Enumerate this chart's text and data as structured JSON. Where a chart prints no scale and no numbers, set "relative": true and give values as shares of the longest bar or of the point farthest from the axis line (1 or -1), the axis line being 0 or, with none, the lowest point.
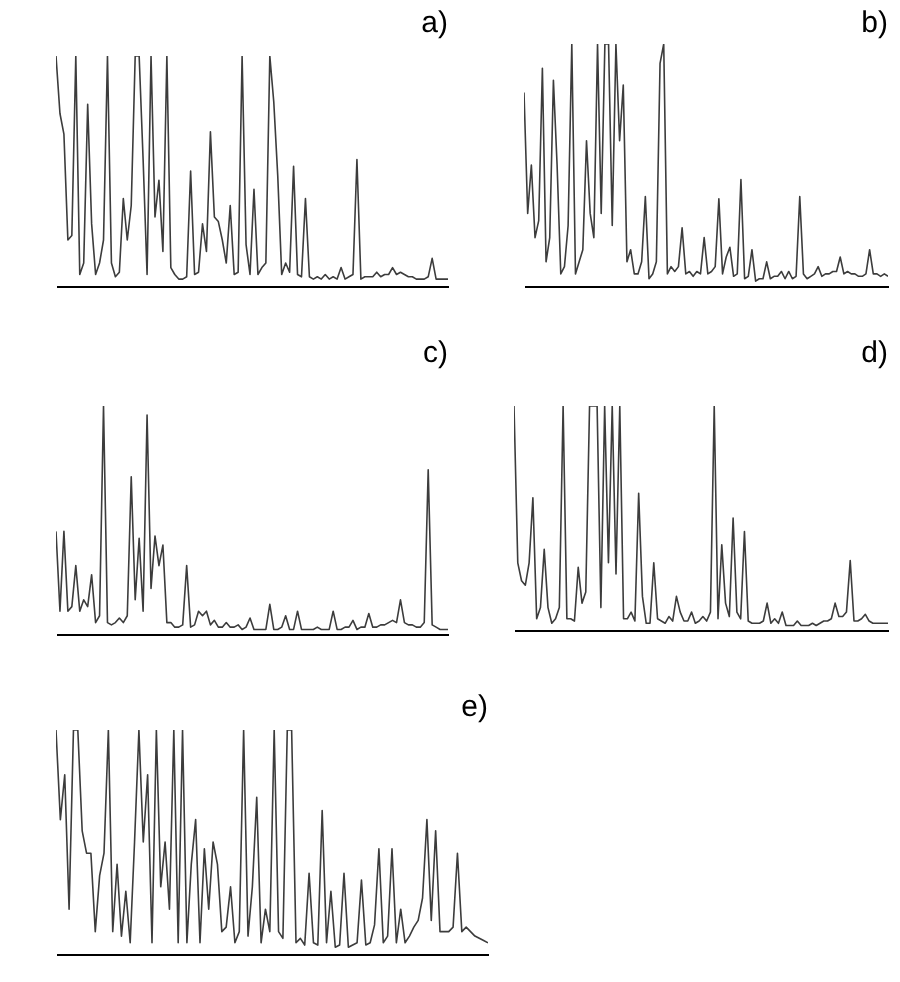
{
  "chart_data": [
    {
      "type": "line",
      "title": "a)",
      "categories": [
        null,
        null,
        null,
        null,
        null,
        null,
        null,
        null,
        null,
        null,
        null,
        null,
        null,
        null,
        null,
        null,
        null,
        null,
        null,
        null,
        null,
        null,
        null,
        null,
        null,
        null,
        null,
        null,
        null,
        null,
        null,
        null,
        null,
        null,
        null,
        null,
        null,
        null,
        null,
        null,
        null,
        null,
        null,
        null,
        null,
        null,
        null,
        null,
        null,
        null,
        null,
        null,
        null,
        null,
        null,
        null,
        null,
        null,
        null,
        null,
        null,
        null,
        null,
        null,
        null,
        null,
        null,
        null,
        null,
        null,
        null,
        null,
        null,
        null,
        null,
        null,
        null,
        null,
        null,
        null,
        null,
        null,
        null,
        null,
        null,
        null,
        null,
        null,
        null,
        null,
        null,
        null,
        null,
        null,
        null,
        null,
        null,
        null,
        null,
        null
      ],
      "values": [
        1.0,
        0.75,
        0.66,
        0.2,
        0.22,
        1.0,
        0.05,
        0.1,
        0.79,
        0.27,
        0.05,
        0.1,
        0.2,
        1.0,
        0.1,
        0.04,
        0.06,
        0.38,
        0.2,
        0.35,
        1.0,
        1.0,
        0.55,
        0.05,
        1.0,
        0.3,
        0.46,
        0.15,
        1.0,
        0.08,
        0.05,
        0.03,
        0.03,
        0.04,
        0.5,
        0.05,
        0.06,
        0.27,
        0.15,
        0.67,
        0.3,
        0.28,
        0.2,
        0.1,
        0.35,
        0.05,
        0.06,
        1.0,
        0.18,
        0.05,
        0.42,
        0.05,
        0.08,
        0.1,
        1.0,
        0.8,
        0.48,
        0.05,
        0.1,
        0.06,
        0.52,
        0.05,
        0.04,
        0.38,
        0.04,
        0.03,
        0.04,
        0.03,
        0.05,
        0.03,
        0.04,
        0.03,
        0.08,
        0.03,
        0.04,
        0.05,
        0.55,
        0.03,
        0.04,
        0.04,
        0.04,
        0.06,
        0.04,
        0.05,
        0.05,
        0.08,
        0.05,
        0.06,
        0.05,
        0.04,
        0.04,
        0.03,
        0.03,
        0.03,
        0.04,
        0.12,
        0.03,
        0.03,
        0.03,
        0.03
      ],
      "color": "#3c3c3c",
      "relative": true
    },
    {
      "type": "line",
      "title": "b)",
      "categories": [
        null,
        null,
        null,
        null,
        null,
        null,
        null,
        null,
        null,
        null,
        null,
        null,
        null,
        null,
        null,
        null,
        null,
        null,
        null,
        null,
        null,
        null,
        null,
        null,
        null,
        null,
        null,
        null,
        null,
        null,
        null,
        null,
        null,
        null,
        null,
        null,
        null,
        null,
        null,
        null,
        null,
        null,
        null,
        null,
        null,
        null,
        null,
        null,
        null,
        null,
        null,
        null,
        null,
        null,
        null,
        null,
        null,
        null,
        null,
        null,
        null,
        null,
        null,
        null,
        null,
        null,
        null,
        null,
        null,
        null,
        null,
        null,
        null,
        null,
        null,
        null,
        null,
        null,
        null,
        null,
        null,
        null,
        null,
        null,
        null,
        null,
        null,
        null,
        null,
        null,
        null,
        null,
        null,
        null,
        null,
        null,
        null,
        null,
        null,
        null
      ],
      "values": [
        0.8,
        0.3,
        0.5,
        0.2,
        0.27,
        0.9,
        0.1,
        0.2,
        0.85,
        0.5,
        0.05,
        0.08,
        0.25,
        1.0,
        0.05,
        0.1,
        0.15,
        0.6,
        0.3,
        0.2,
        1.0,
        0.3,
        1.0,
        1.0,
        0.25,
        1.0,
        0.6,
        0.83,
        0.1,
        0.15,
        0.05,
        0.05,
        0.1,
        0.37,
        0.03,
        0.05,
        0.1,
        0.92,
        1.0,
        0.05,
        0.08,
        0.06,
        0.08,
        0.24,
        0.05,
        0.06,
        0.04,
        0.06,
        0.05,
        0.2,
        0.05,
        0.06,
        0.08,
        0.36,
        0.05,
        0.12,
        0.16,
        0.04,
        0.05,
        0.44,
        0.03,
        0.04,
        0.15,
        0.02,
        0.03,
        0.03,
        0.1,
        0.03,
        0.04,
        0.04,
        0.06,
        0.03,
        0.06,
        0.03,
        0.04,
        0.37,
        0.05,
        0.03,
        0.04,
        0.05,
        0.08,
        0.04,
        0.05,
        0.05,
        0.06,
        0.06,
        0.12,
        0.05,
        0.06,
        0.05,
        0.05,
        0.04,
        0.04,
        0.05,
        0.15,
        0.05,
        0.05,
        0.04,
        0.05,
        0.04
      ],
      "color": "#3c3c3c",
      "relative": true
    },
    {
      "type": "line",
      "title": "c)",
      "categories": [
        null,
        null,
        null,
        null,
        null,
        null,
        null,
        null,
        null,
        null,
        null,
        null,
        null,
        null,
        null,
        null,
        null,
        null,
        null,
        null,
        null,
        null,
        null,
        null,
        null,
        null,
        null,
        null,
        null,
        null,
        null,
        null,
        null,
        null,
        null,
        null,
        null,
        null,
        null,
        null,
        null,
        null,
        null,
        null,
        null,
        null,
        null,
        null,
        null,
        null,
        null,
        null,
        null,
        null,
        null,
        null,
        null,
        null,
        null,
        null,
        null,
        null,
        null,
        null,
        null,
        null,
        null,
        null,
        null,
        null,
        null,
        null,
        null,
        null,
        null,
        null,
        null,
        null,
        null,
        null,
        null,
        null,
        null,
        null,
        null,
        null,
        null,
        null,
        null,
        null,
        null,
        null,
        null,
        null,
        null,
        null,
        null,
        null,
        null,
        null
      ],
      "values": [
        0.45,
        0.1,
        0.45,
        0.1,
        0.12,
        0.3,
        0.1,
        0.15,
        0.12,
        0.26,
        0.05,
        0.08,
        1.0,
        0.05,
        0.04,
        0.05,
        0.07,
        0.05,
        0.08,
        0.69,
        0.15,
        0.42,
        0.1,
        0.96,
        0.2,
        0.43,
        0.3,
        0.39,
        0.05,
        0.05,
        0.03,
        0.03,
        0.04,
        0.3,
        0.03,
        0.04,
        0.1,
        0.08,
        0.1,
        0.04,
        0.06,
        0.03,
        0.03,
        0.05,
        0.03,
        0.03,
        0.04,
        0.02,
        0.03,
        0.07,
        0.02,
        0.02,
        0.02,
        0.02,
        0.13,
        0.02,
        0.02,
        0.03,
        0.08,
        0.02,
        0.02,
        0.1,
        0.02,
        0.02,
        0.02,
        0.02,
        0.03,
        0.02,
        0.02,
        0.02,
        0.1,
        0.02,
        0.02,
        0.03,
        0.03,
        0.06,
        0.02,
        0.03,
        0.03,
        0.09,
        0.03,
        0.03,
        0.04,
        0.04,
        0.05,
        0.06,
        0.05,
        0.15,
        0.05,
        0.04,
        0.04,
        0.03,
        0.03,
        0.05,
        0.72,
        0.04,
        0.03,
        0.02,
        0.02,
        0.02
      ],
      "color": "#3c3c3c",
      "relative": true
    },
    {
      "type": "line",
      "title": "d)",
      "categories": [
        null,
        null,
        null,
        null,
        null,
        null,
        null,
        null,
        null,
        null,
        null,
        null,
        null,
        null,
        null,
        null,
        null,
        null,
        null,
        null,
        null,
        null,
        null,
        null,
        null,
        null,
        null,
        null,
        null,
        null,
        null,
        null,
        null,
        null,
        null,
        null,
        null,
        null,
        null,
        null,
        null,
        null,
        null,
        null,
        null,
        null,
        null,
        null,
        null,
        null,
        null,
        null,
        null,
        null,
        null,
        null,
        null,
        null,
        null,
        null,
        null,
        null,
        null,
        null,
        null,
        null,
        null,
        null,
        null,
        null,
        null,
        null,
        null,
        null,
        null,
        null,
        null,
        null,
        null,
        null,
        null,
        null,
        null,
        null,
        null,
        null,
        null,
        null,
        null,
        null,
        null,
        null,
        null,
        null,
        null,
        null,
        null,
        null,
        null,
        null
      ],
      "values": [
        1.0,
        0.3,
        0.22,
        0.2,
        0.3,
        0.59,
        0.05,
        0.1,
        0.36,
        0.1,
        0.03,
        0.05,
        0.1,
        1.0,
        0.05,
        0.05,
        0.04,
        0.28,
        0.12,
        0.17,
        1.0,
        1.0,
        1.0,
        0.1,
        1.0,
        0.3,
        1.0,
        0.25,
        1.0,
        0.05,
        0.05,
        0.08,
        0.04,
        0.61,
        0.15,
        0.03,
        0.03,
        0.3,
        0.05,
        0.04,
        0.03,
        0.06,
        0.04,
        0.15,
        0.08,
        0.04,
        0.04,
        0.08,
        0.03,
        0.04,
        0.06,
        0.04,
        0.08,
        1.0,
        0.05,
        0.38,
        0.12,
        0.06,
        0.5,
        0.08,
        0.05,
        0.44,
        0.04,
        0.03,
        0.03,
        0.03,
        0.04,
        0.12,
        0.03,
        0.05,
        0.03,
        0.08,
        0.02,
        0.02,
        0.02,
        0.04,
        0.02,
        0.02,
        0.02,
        0.03,
        0.02,
        0.03,
        0.04,
        0.04,
        0.05,
        0.12,
        0.06,
        0.06,
        0.08,
        0.31,
        0.04,
        0.04,
        0.05,
        0.07,
        0.04,
        0.03,
        0.03,
        0.03,
        0.03,
        0.03
      ],
      "color": "#3c3c3c",
      "relative": true
    },
    {
      "type": "line",
      "title": "e)",
      "categories": [
        null,
        null,
        null,
        null,
        null,
        null,
        null,
        null,
        null,
        null,
        null,
        null,
        null,
        null,
        null,
        null,
        null,
        null,
        null,
        null,
        null,
        null,
        null,
        null,
        null,
        null,
        null,
        null,
        null,
        null,
        null,
        null,
        null,
        null,
        null,
        null,
        null,
        null,
        null,
        null,
        null,
        null,
        null,
        null,
        null,
        null,
        null,
        null,
        null,
        null,
        null,
        null,
        null,
        null,
        null,
        null,
        null,
        null,
        null,
        null,
        null,
        null,
        null,
        null,
        null,
        null,
        null,
        null,
        null,
        null,
        null,
        null,
        null,
        null,
        null,
        null,
        null,
        null,
        null,
        null,
        null,
        null,
        null,
        null,
        null,
        null,
        null,
        null,
        null,
        null,
        null,
        null,
        null,
        null,
        null,
        null,
        null,
        null,
        null,
        null
      ],
      "values": [
        1.0,
        0.6,
        0.8,
        0.2,
        1.0,
        1.0,
        0.55,
        0.45,
        0.45,
        0.1,
        0.35,
        0.45,
        1.0,
        0.1,
        0.4,
        0.08,
        0.28,
        0.05,
        0.5,
        1.0,
        0.5,
        0.8,
        0.05,
        1.0,
        0.3,
        0.5,
        0.2,
        1.0,
        0.05,
        1.0,
        0.05,
        0.4,
        0.6,
        0.05,
        0.47,
        0.2,
        0.5,
        0.4,
        0.1,
        0.12,
        0.3,
        0.05,
        0.1,
        1.0,
        0.08,
        0.3,
        0.7,
        0.05,
        0.2,
        0.1,
        1.0,
        0.1,
        0.07,
        1.0,
        1.0,
        0.05,
        0.07,
        0.04,
        0.36,
        0.05,
        0.04,
        0.64,
        0.05,
        0.28,
        0.03,
        0.04,
        0.36,
        0.03,
        0.04,
        0.05,
        0.33,
        0.04,
        0.05,
        0.13,
        0.47,
        0.05,
        0.08,
        0.47,
        0.05,
        0.2,
        0.05,
        0.08,
        0.12,
        0.15,
        0.25,
        0.6,
        0.15,
        0.55,
        0.1,
        0.1,
        0.1,
        0.12,
        0.45,
        0.1,
        0.12,
        0.1,
        0.08,
        0.07,
        0.06,
        0.05
      ],
      "color": "#3c3c3c",
      "relative": true
    }
  ]
}
